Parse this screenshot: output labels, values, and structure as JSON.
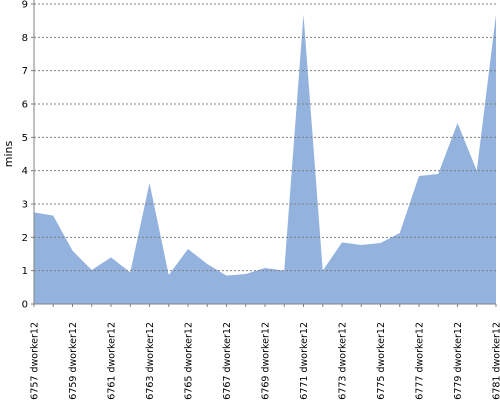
{
  "chart_data": {
    "type": "area",
    "y_label": "mins",
    "categories": [
      "#6757 dworker12",
      null,
      "#6759 dworker12",
      null,
      "#6761 dworker12",
      null,
      "#6763 dworker12",
      null,
      "#6765 dworker12",
      null,
      "#6767 dworker12",
      null,
      "#6769 dworker12",
      null,
      "#6771 dworker12",
      null,
      "#6773 dworker12",
      null,
      "#6775 dworker12",
      null,
      "#6777 dworker12",
      null,
      "#6779 dworker12",
      null,
      "#6781 dworker12"
    ],
    "values": [
      2.75,
      2.65,
      1.6,
      1.02,
      1.4,
      0.95,
      3.63,
      0.87,
      1.65,
      1.2,
      0.85,
      0.9,
      1.08,
      1.0,
      8.68,
      1.0,
      1.85,
      1.77,
      1.83,
      2.13,
      3.84,
      3.9,
      5.43,
      4.0,
      8.68
    ],
    "color": "#93b3de",
    "ylim": [
      0,
      9
    ],
    "yticks": [
      0,
      1,
      2,
      3,
      4,
      5,
      6,
      7,
      8,
      9
    ],
    "grid": true
  }
}
